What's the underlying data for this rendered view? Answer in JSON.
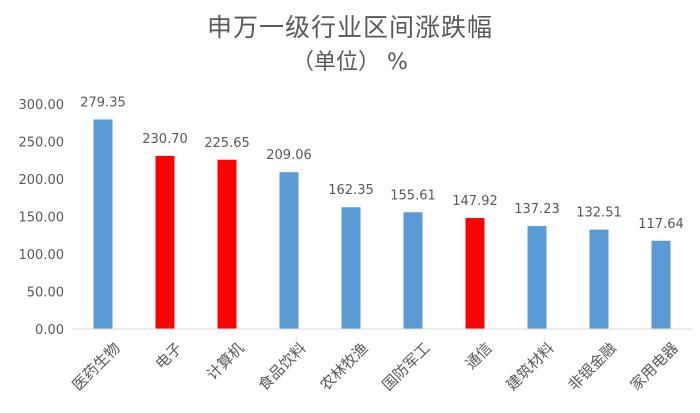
{
  "chart_data": {
    "type": "bar",
    "title": "申万一级行业区间涨跌幅",
    "subtitle": "（单位）  %",
    "categories": [
      "医药生物",
      "电子",
      "计算机",
      "食品饮料",
      "农林牧渔",
      "国防军工",
      "通信",
      "建筑材料",
      "非银金融",
      "家用电器"
    ],
    "values": [
      279.35,
      230.7,
      225.65,
      209.06,
      162.35,
      155.61,
      147.92,
      137.23,
      132.51,
      117.64
    ],
    "data_labels": [
      "279.35",
      "230.70",
      "225.65",
      "209.06",
      "162.35",
      "155.61",
      "147.92",
      "137.23",
      "132.51",
      "117.64"
    ],
    "highlighted": [
      false,
      true,
      true,
      false,
      false,
      false,
      true,
      false,
      false,
      false
    ],
    "colors": {
      "default": "#5B9BD5",
      "highlight": "#FF0000",
      "axis_text": "#595959",
      "axis_line": "#D9D9D9"
    },
    "ylim": [
      0,
      300
    ],
    "yticks": [
      "0.00",
      "50.00",
      "100.00",
      "150.00",
      "200.00",
      "250.00",
      "300.00"
    ],
    "xlabel": "",
    "ylabel": "",
    "grid": false,
    "legend": "none"
  }
}
